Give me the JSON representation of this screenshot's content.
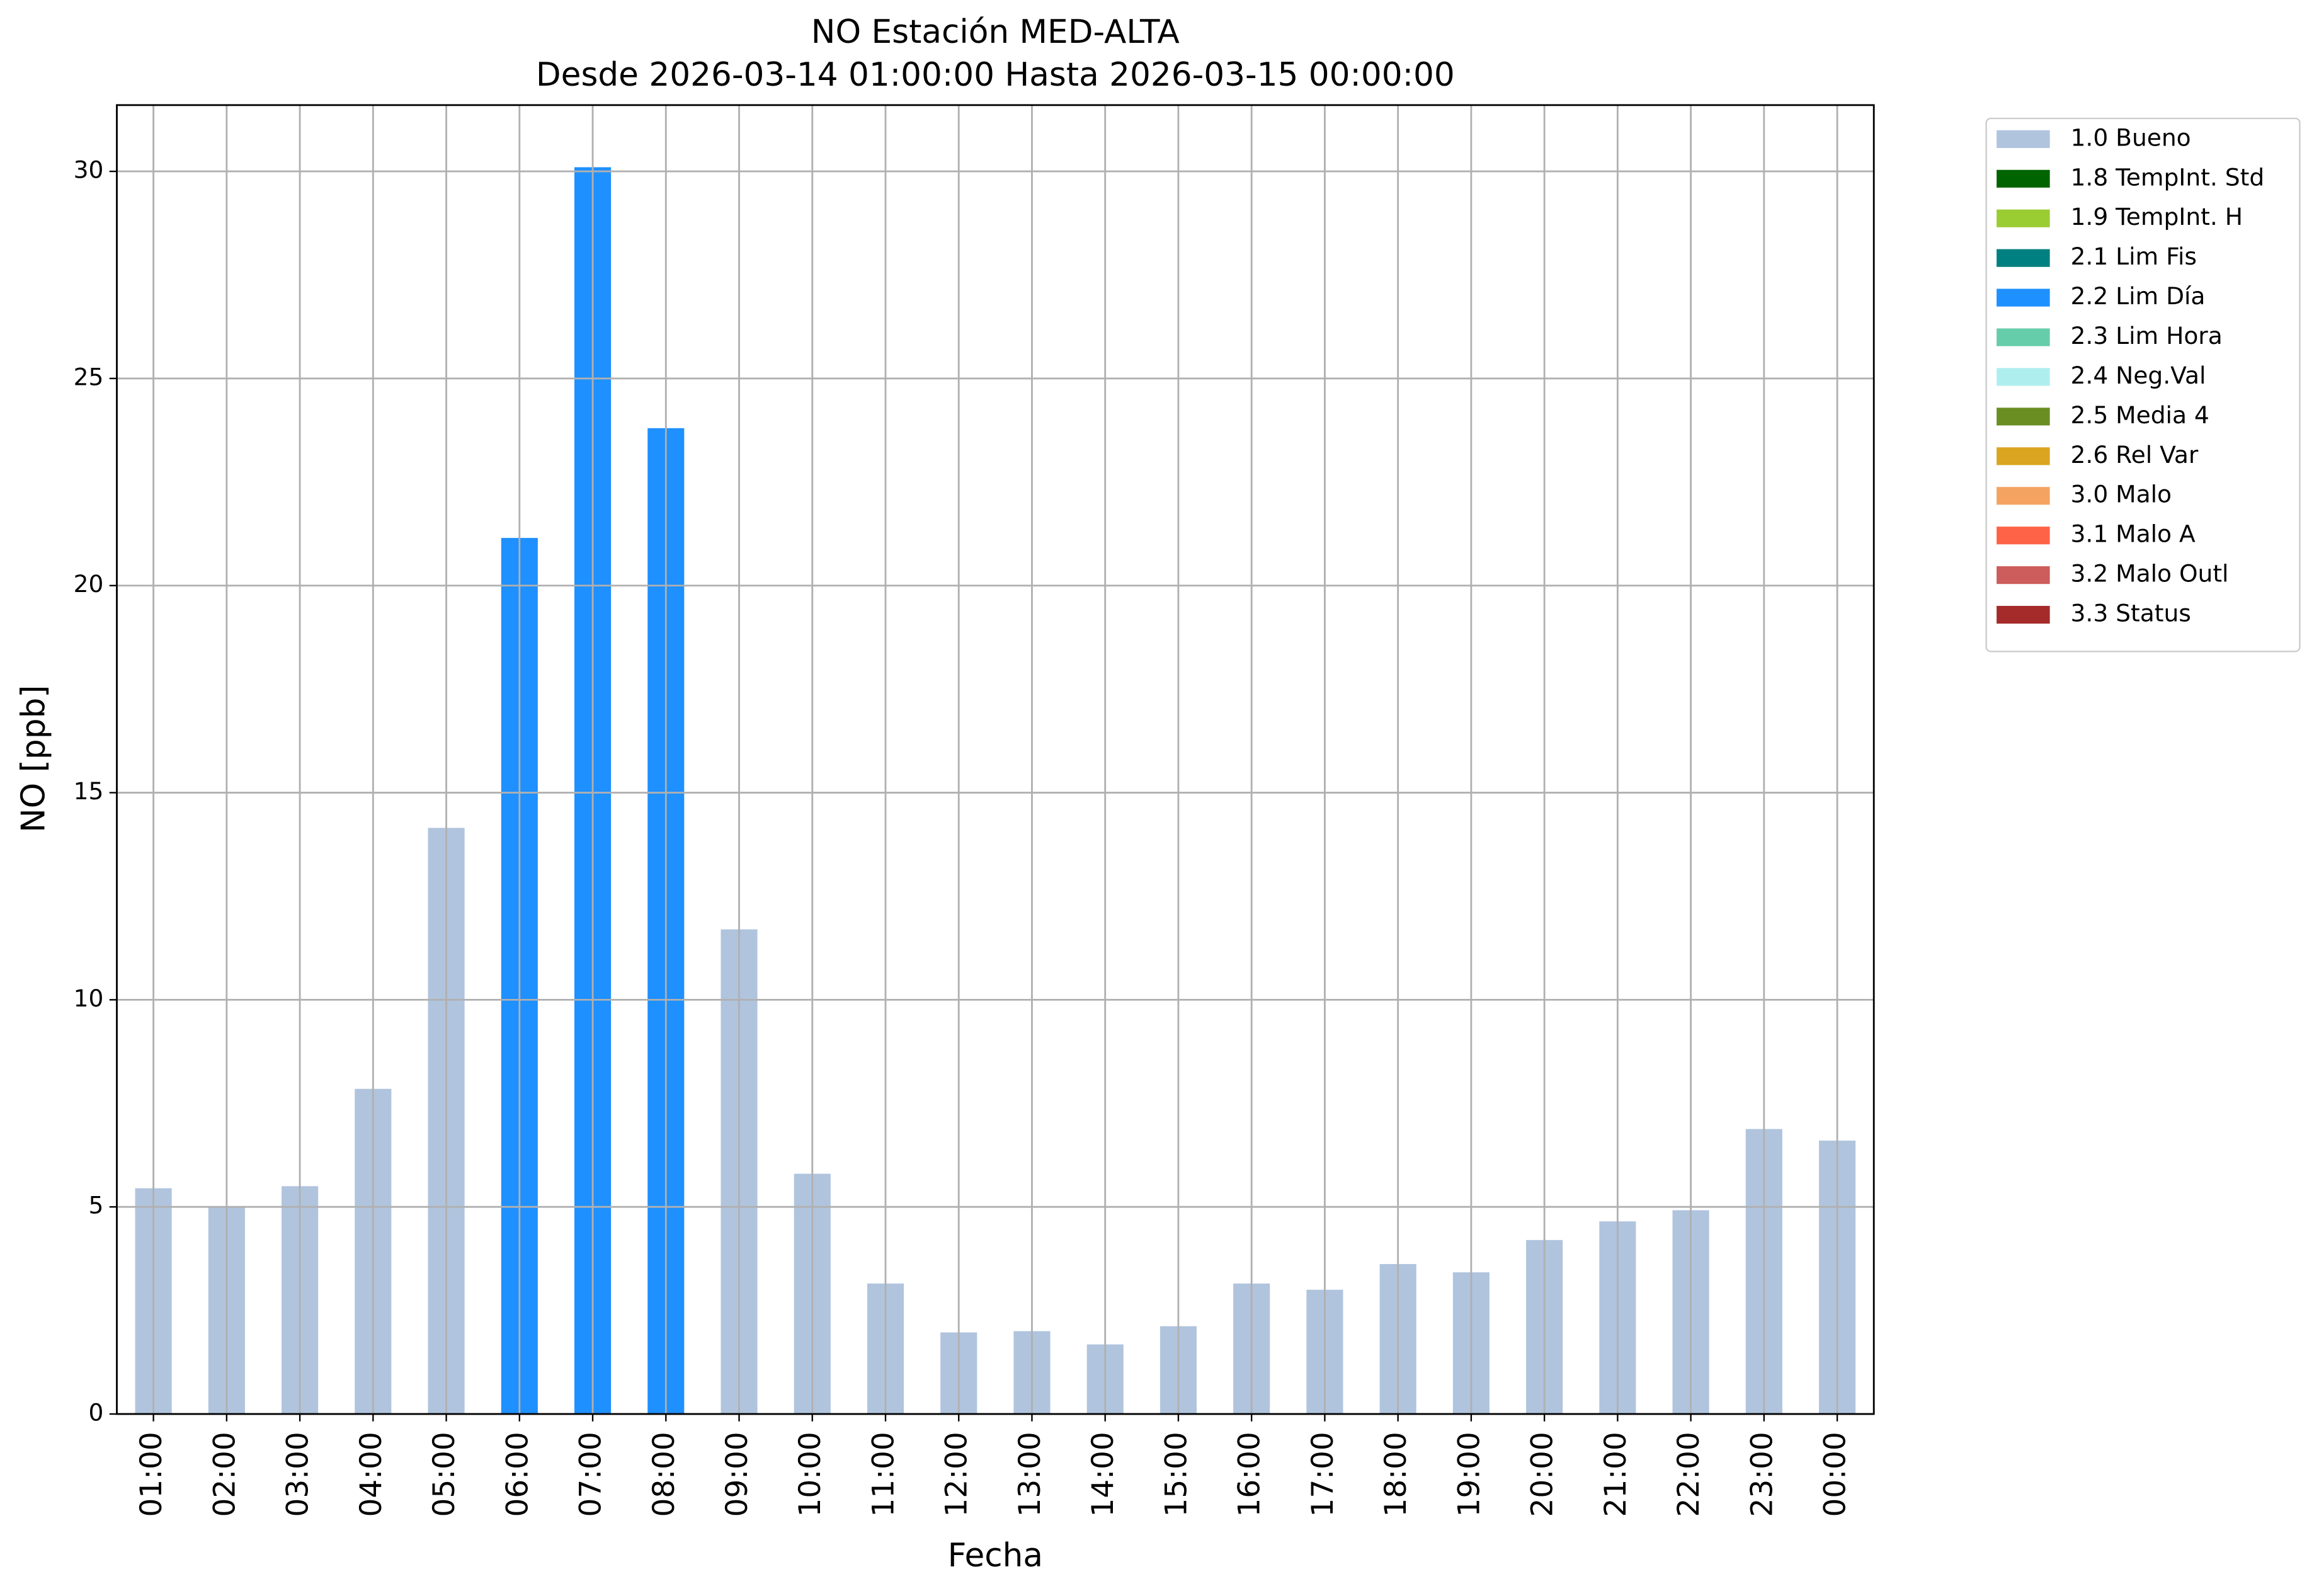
{
  "chart_data": {
    "type": "stacked_bar",
    "title": "NO Estación MED-ALTA",
    "subtitle": "Desde 2026-03-14 01:00:00 Hasta 2026-03-15 00:00:00",
    "x_label": "Fecha",
    "y_label": "NO [ppb]",
    "categories": [
      "01:00",
      "02:00",
      "03:00",
      "04:00",
      "05:00",
      "06:00",
      "07:00",
      "08:00",
      "09:00",
      "10:00",
      "11:00",
      "12:00",
      "13:00",
      "14:00",
      "15:00",
      "16:00",
      "17:00",
      "18:00",
      "19:00",
      "20:00",
      "21:00",
      "22:00",
      "23:00",
      "00:00"
    ],
    "series": [
      {
        "name": "1.0 Bueno",
        "color": "#b0c4de",
        "values": [
          5.45,
          5.0,
          5.5,
          7.85,
          14.15,
          null,
          null,
          null,
          11.7,
          5.8,
          3.15,
          1.97,
          2.0,
          1.68,
          2.12,
          3.15,
          3.0,
          3.62,
          3.42,
          4.2,
          4.65,
          4.92,
          6.88,
          6.6
        ]
      },
      {
        "name": "1.8 TempInt. Std",
        "color": "#006400",
        "values": [
          null,
          null,
          null,
          null,
          null,
          null,
          null,
          null,
          null,
          null,
          null,
          null,
          null,
          null,
          null,
          null,
          null,
          null,
          null,
          null,
          null,
          null,
          null,
          null
        ]
      },
      {
        "name": "1.9 TempInt. H",
        "color": "#9acd32",
        "values": [
          null,
          null,
          null,
          null,
          null,
          null,
          null,
          null,
          null,
          null,
          null,
          null,
          null,
          null,
          null,
          null,
          null,
          null,
          null,
          null,
          null,
          null,
          null,
          null
        ]
      },
      {
        "name": "2.1 Lim Fis",
        "color": "#008080",
        "values": [
          null,
          null,
          null,
          null,
          null,
          null,
          null,
          null,
          null,
          null,
          null,
          null,
          null,
          null,
          null,
          null,
          null,
          null,
          null,
          null,
          null,
          null,
          null,
          null
        ]
      },
      {
        "name": "2.2 Lim Día",
        "color": "#1e90ff",
        "values": [
          null,
          null,
          null,
          null,
          null,
          21.15,
          30.1,
          23.8,
          null,
          null,
          null,
          null,
          null,
          null,
          null,
          null,
          null,
          null,
          null,
          null,
          null,
          null,
          null,
          null
        ]
      },
      {
        "name": "2.3 Lim Hora",
        "color": "#66cdaa",
        "values": [
          null,
          null,
          null,
          null,
          null,
          null,
          null,
          null,
          null,
          null,
          null,
          null,
          null,
          null,
          null,
          null,
          null,
          null,
          null,
          null,
          null,
          null,
          null,
          null
        ]
      },
      {
        "name": "2.4 Neg.Val",
        "color": "#afeeee",
        "values": [
          null,
          null,
          null,
          null,
          null,
          null,
          null,
          null,
          null,
          null,
          null,
          null,
          null,
          null,
          null,
          null,
          null,
          null,
          null,
          null,
          null,
          null,
          null,
          null
        ]
      },
      {
        "name": "2.5 Media 4",
        "color": "#6b8e23",
        "values": [
          null,
          null,
          null,
          null,
          null,
          null,
          null,
          null,
          null,
          null,
          null,
          null,
          null,
          null,
          null,
          null,
          null,
          null,
          null,
          null,
          null,
          null,
          null,
          null
        ]
      },
      {
        "name": "2.6 Rel Var",
        "color": "#daa520",
        "values": [
          null,
          null,
          null,
          null,
          null,
          null,
          null,
          null,
          null,
          null,
          null,
          null,
          null,
          null,
          null,
          null,
          null,
          null,
          null,
          null,
          null,
          null,
          null,
          null
        ]
      },
      {
        "name": "3.0 Malo",
        "color": "#f4a460",
        "values": [
          null,
          null,
          null,
          null,
          null,
          null,
          null,
          null,
          null,
          null,
          null,
          null,
          null,
          null,
          null,
          null,
          null,
          null,
          null,
          null,
          null,
          null,
          null,
          null
        ]
      },
      {
        "name": "3.1 Malo A",
        "color": "#ff6347",
        "values": [
          null,
          null,
          null,
          null,
          null,
          null,
          null,
          null,
          null,
          null,
          null,
          null,
          null,
          null,
          null,
          null,
          null,
          null,
          null,
          null,
          null,
          null,
          null,
          null
        ]
      },
      {
        "name": "3.2 Malo Outl",
        "color": "#cd5c5c",
        "values": [
          null,
          null,
          null,
          null,
          null,
          null,
          null,
          null,
          null,
          null,
          null,
          null,
          null,
          null,
          null,
          null,
          null,
          null,
          null,
          null,
          null,
          null,
          null,
          null
        ]
      },
      {
        "name": "3.3 Status",
        "color": "#a52a2a",
        "values": [
          null,
          null,
          null,
          null,
          null,
          null,
          null,
          null,
          null,
          null,
          null,
          null,
          null,
          null,
          null,
          null,
          null,
          null,
          null,
          null,
          null,
          null,
          null,
          null
        ]
      }
    ],
    "ylim": [
      0,
      31.6
    ],
    "yticks": [
      0,
      5,
      10,
      15,
      20,
      25,
      30
    ],
    "grid": true,
    "legend": "outside-upper-right"
  }
}
